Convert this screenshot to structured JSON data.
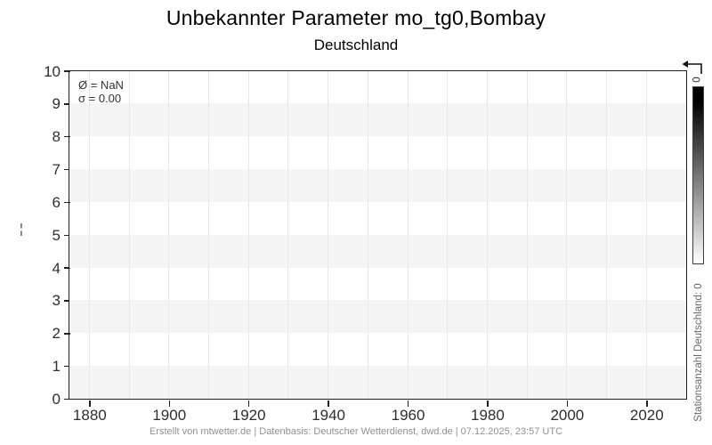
{
  "title": "Unbekannter Parameter mo_tg0,Bombay",
  "subtitle": "Deutschland",
  "annotation": {
    "mean_line": "Ø = NaN",
    "sigma_line": "σ = 0.00"
  },
  "y_axis_mark": "¦",
  "colorbar": {
    "top_label": "0",
    "side_label": "Stationsanzahl Deutschland: 0",
    "top_color": "#000000",
    "bottom_color": "#ffffff"
  },
  "footer": "Erstellt von mtwetter.de | Datenbasis: Deutscher Wetterdienst, dwd.de | 07.12.2025, 23:57 UTC",
  "colors": {
    "band": "#f4f4f4",
    "gridline": "#e8e8e8",
    "axis": "#1f1f1f",
    "tick_label": "#2e2e2e"
  },
  "chart_data": {
    "type": "line",
    "title": "Unbekannter Parameter mo_tg0,Bombay",
    "subtitle": "Deutschland",
    "xlabel": "",
    "ylabel": "",
    "xlim": [
      1875,
      2030
    ],
    "ylim": [
      0,
      10
    ],
    "x_ticks": [
      1880,
      1900,
      1920,
      1940,
      1960,
      1980,
      2000,
      2020
    ],
    "x_tick_labels": [
      "1880",
      "1900",
      "1920",
      "1940",
      "1960",
      "1980",
      "2000",
      "2020"
    ],
    "x_gridlines": [
      1880,
      1890,
      1900,
      1910,
      1920,
      1930,
      1940,
      1950,
      1960,
      1970,
      1980,
      1990,
      2000,
      2010,
      2020
    ],
    "y_ticks": [
      0,
      1,
      2,
      3,
      4,
      5,
      6,
      7,
      8,
      9,
      10
    ],
    "y_tick_labels": [
      "0",
      "1",
      "2",
      "3",
      "4",
      "5",
      "6",
      "7",
      "8",
      "9",
      "10"
    ],
    "shaded_bands": [
      [
        0,
        1
      ],
      [
        2,
        3
      ],
      [
        4,
        5
      ],
      [
        6,
        7
      ],
      [
        8,
        9
      ]
    ],
    "grid": "vertical-only",
    "legend": "none",
    "series": [],
    "note": "Empty plot: no data values drawn (mean = NaN, sigma = 0.00, station count 0)"
  }
}
